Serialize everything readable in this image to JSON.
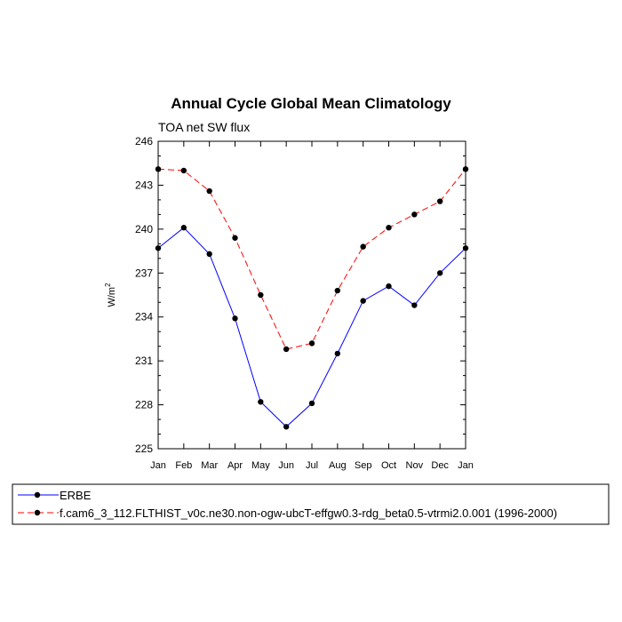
{
  "chart_data": {
    "type": "line",
    "title": "Annual Cycle Global Mean Climatology",
    "subtitle": "TOA net SW flux",
    "xlabel": "",
    "ylabel": "W/m",
    "ylabel_sup": "2",
    "ylim": [
      225,
      246
    ],
    "yticks": [
      "225",
      "228",
      "231",
      "234",
      "237",
      "240",
      "243",
      "246"
    ],
    "categories": [
      "Jan",
      "Feb",
      "Mar",
      "Apr",
      "May",
      "Jun",
      "Jul",
      "Aug",
      "Sep",
      "Oct",
      "Nov",
      "Dec",
      "Jan"
    ],
    "series": [
      {
        "name": "ERBE",
        "color": "#0000ff",
        "dash": "solid",
        "values": [
          238.7,
          240.1,
          238.3,
          233.9,
          228.2,
          226.5,
          228.1,
          231.5,
          235.1,
          236.1,
          234.8,
          237.0,
          238.7
        ]
      },
      {
        "name": "f.cam6_3_112.FLTHIST_v0c.ne30.non-ogw-ubcT-effgw0.3-rdg_beta0.5-vtrmi2.0.001 (1996-2000)",
        "color": "#ff0000",
        "dash": "dashed",
        "values": [
          244.1,
          244.0,
          242.6,
          239.4,
          235.5,
          231.8,
          232.2,
          235.8,
          238.8,
          240.1,
          241.0,
          241.9,
          244.1
        ]
      }
    ]
  }
}
